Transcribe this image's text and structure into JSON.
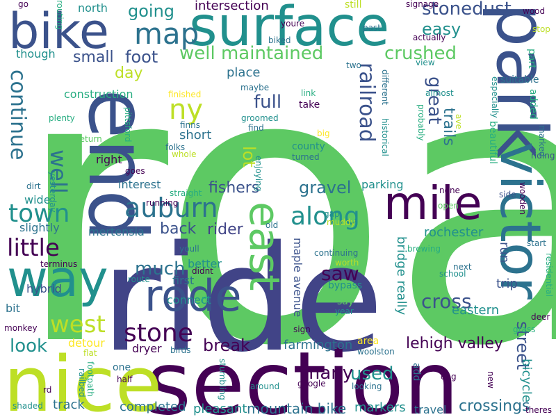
{
  "palette": {
    "dark_purple": "#440154",
    "indigo": "#414487",
    "slate_blue": "#3b528b",
    "teal_blue": "#2c728e",
    "teal": "#21908d",
    "sea_green": "#27ad81",
    "green": "#5dc963",
    "yellow_green": "#bddf26",
    "yellow": "#fde725"
  },
  "words": [
    {
      "text": "road"
    },
    {
      "text": "ride"
    },
    {
      "text": "section"
    },
    {
      "text": "nice"
    },
    {
      "text": "surface"
    },
    {
      "text": "end"
    },
    {
      "text": "park"
    },
    {
      "text": "bike"
    },
    {
      "text": "victor"
    },
    {
      "text": "way"
    },
    {
      "text": "mile"
    },
    {
      "text": "rode"
    },
    {
      "text": "east"
    },
    {
      "text": "map"
    },
    {
      "text": "auburn"
    },
    {
      "text": "along"
    },
    {
      "text": "stone"
    },
    {
      "text": "town"
    },
    {
      "text": "continue"
    },
    {
      "text": "little"
    },
    {
      "text": "west"
    },
    {
      "text": "well maintained"
    },
    {
      "text": "ny"
    },
    {
      "text": "railroad"
    },
    {
      "text": "crushed"
    },
    {
      "text": "stonedust"
    },
    {
      "text": "easy"
    },
    {
      "text": "going"
    },
    {
      "text": "foot"
    },
    {
      "text": "small"
    },
    {
      "text": "day"
    },
    {
      "text": "well"
    },
    {
      "text": "full"
    },
    {
      "text": "great"
    },
    {
      "text": "trails"
    },
    {
      "text": "lot"
    },
    {
      "text": "fishers"
    },
    {
      "text": "gravel"
    },
    {
      "text": "rider"
    },
    {
      "text": "back"
    },
    {
      "text": "saw"
    },
    {
      "text": "much"
    },
    {
      "text": "break"
    },
    {
      "text": "look"
    },
    {
      "text": "cross"
    },
    {
      "text": "street"
    },
    {
      "text": "lehigh valley"
    },
    {
      "text": "farmington"
    },
    {
      "text": "used"
    },
    {
      "text": "many"
    },
    {
      "text": "mountain bike"
    },
    {
      "text": "crossings"
    },
    {
      "text": "track"
    },
    {
      "text": "completed"
    },
    {
      "text": "pleasant"
    },
    {
      "text": "markers"
    },
    {
      "text": "travel"
    },
    {
      "text": "short"
    },
    {
      "text": "place"
    },
    {
      "text": "intersection"
    },
    {
      "text": "north"
    },
    {
      "text": "though"
    },
    {
      "text": "construction"
    },
    {
      "text": "right"
    },
    {
      "text": "interest"
    },
    {
      "text": "wide"
    },
    {
      "text": "slightly"
    },
    {
      "text": "mertensia"
    },
    {
      "text": "rochester"
    },
    {
      "text": "parking"
    },
    {
      "text": "maple avenue"
    },
    {
      "text": "bridge really"
    },
    {
      "text": "bicycle"
    },
    {
      "text": "eastern"
    },
    {
      "text": "trip"
    },
    {
      "text": "run"
    },
    {
      "text": "hybrid"
    },
    {
      "text": "bit"
    },
    {
      "text": "detour"
    },
    {
      "text": "connect"
    },
    {
      "text": "better"
    },
    {
      "text": "first"
    },
    {
      "text": "dryer"
    },
    {
      "text": "one"
    },
    {
      "text": "say"
    },
    {
      "text": "bypass"
    },
    {
      "text": "area"
    },
    {
      "text": "add"
    },
    {
      "text": "county"
    },
    {
      "text": "take"
    },
    {
      "text": "link"
    },
    {
      "text": "suitable"
    },
    {
      "text": "added"
    },
    {
      "text": "part"
    },
    {
      "text": "beautiful"
    },
    {
      "text": "still"
    },
    {
      "text": "pittsford"
    },
    {
      "text": "goes"
    },
    {
      "text": "dirt"
    },
    {
      "text": "half"
    },
    {
      "text": "rt"
    },
    {
      "text": "sign"
    },
    {
      "text": "year"
    },
    {
      "text": "next"
    },
    {
      "text": "school"
    },
    {
      "text": "deer"
    },
    {
      "text": "grass"
    },
    {
      "text": "wooden"
    },
    {
      "text": "side"
    },
    {
      "text": "none"
    },
    {
      "text": "riding"
    },
    {
      "text": "marked"
    },
    {
      "text": "wood"
    },
    {
      "text": "stop"
    },
    {
      "text": "signage"
    },
    {
      "text": "actually"
    },
    {
      "text": "almost"
    },
    {
      "text": "view"
    },
    {
      "text": "different"
    },
    {
      "text": "historical"
    },
    {
      "text": "go"
    },
    {
      "text": "routing"
    },
    {
      "text": "youre"
    },
    {
      "text": "biked"
    },
    {
      "text": "past"
    },
    {
      "text": "two"
    },
    {
      "text": "maybe"
    },
    {
      "text": "groomed"
    },
    {
      "text": "finns"
    },
    {
      "text": "folks"
    },
    {
      "text": "whole"
    },
    {
      "text": "plenty"
    },
    {
      "text": "return"
    },
    {
      "text": "yesterday"
    },
    {
      "text": "finished"
    },
    {
      "text": "find"
    },
    {
      "text": "enjoying"
    },
    {
      "text": "turned"
    },
    {
      "text": "big"
    },
    {
      "text": "straight"
    },
    {
      "text": "running"
    },
    {
      "text": "gap"
    },
    {
      "text": "muddy"
    },
    {
      "text": "open"
    },
    {
      "text": "old"
    },
    {
      "text": "youll"
    },
    {
      "text": "didnt"
    },
    {
      "text": "continuing"
    },
    {
      "text": "brewing"
    },
    {
      "text": "worth"
    },
    {
      "text": "start"
    },
    {
      "text": "residential"
    },
    {
      "text": "terminus"
    },
    {
      "text": "route"
    },
    {
      "text": "monkey"
    },
    {
      "text": "birds"
    },
    {
      "text": "flat"
    },
    {
      "text": "footpath"
    },
    {
      "text": "railbed"
    },
    {
      "text": "rd"
    },
    {
      "text": "shaded"
    },
    {
      "text": "stumbling"
    },
    {
      "text": "around"
    },
    {
      "text": "google"
    },
    {
      "text": "looking"
    },
    {
      "text": "woolston"
    },
    {
      "text": "dog"
    },
    {
      "text": "new"
    },
    {
      "text": "theres"
    },
    {
      "text": "probably"
    },
    {
      "text": "ave"
    },
    {
      "text": "especially"
    }
  ]
}
